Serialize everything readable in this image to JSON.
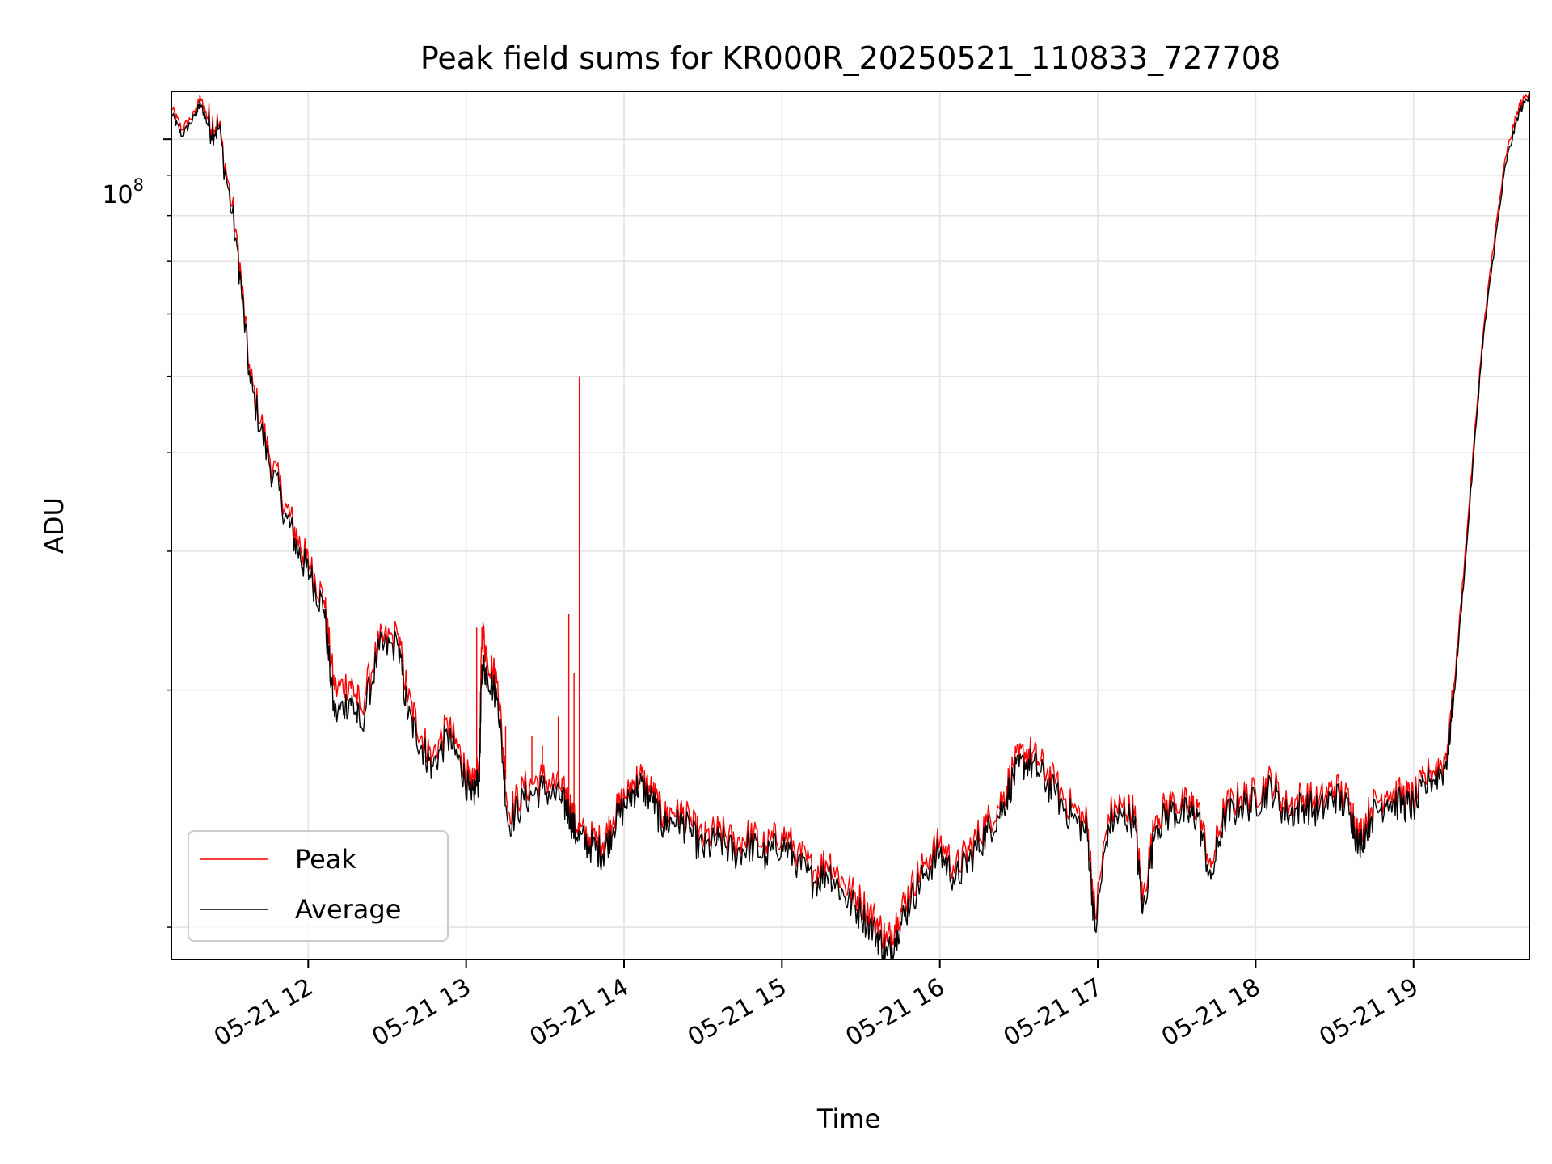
{
  "chart_data": {
    "type": "line",
    "title": "Peak field sums for KR000R_20250521_110833_727708",
    "xlabel": "Time",
    "ylabel": "ADU",
    "yscale": "log",
    "grid": true,
    "legend_position": "lower-left",
    "x_range": [
      "2025-05-21 11:08",
      "2025-05-21 19:44"
    ],
    "x_tick_labels": [
      "05-21 12",
      "05-21 13",
      "05-21 14",
      "05-21 15",
      "05-21 16",
      "05-21 17",
      "05-21 18",
      "05-21 19"
    ],
    "y_range": [
      9100000,
      115000000
    ],
    "y_major_tick_labels": [
      {
        "value": 100000000,
        "base": "10",
        "exponent": "8"
      }
    ],
    "series": [
      {
        "name": "Peak",
        "color": "#ff0000",
        "points": [
          [
            "2025-05-21 11:08",
            110000000
          ],
          [
            "2025-05-21 11:12",
            103000000
          ],
          [
            "2025-05-21 11:17",
            108000000
          ],
          [
            "2025-05-21 11:19",
            113000000
          ],
          [
            "2025-05-21 11:22",
            106000000
          ],
          [
            "2025-05-21 11:26",
            104000000
          ],
          [
            "2025-05-21 11:33",
            75000000
          ],
          [
            "2025-05-21 11:38",
            50000000
          ],
          [
            "2025-05-21 11:45",
            40000000
          ],
          [
            "2025-05-21 11:52",
            34000000
          ],
          [
            "2025-05-21 11:57",
            30500000
          ],
          [
            "2025-05-21 12:01",
            28500000
          ],
          [
            "2025-05-21 12:06",
            26000000
          ],
          [
            "2025-05-21 12:10",
            20000000
          ],
          [
            "2025-05-21 12:16",
            20500000
          ],
          [
            "2025-05-21 12:20",
            19000000
          ],
          [
            "2025-05-21 12:27",
            23000000
          ],
          [
            "2025-05-21 12:34",
            23500000
          ],
          [
            "2025-05-21 12:38",
            19500000
          ],
          [
            "2025-05-21 12:43",
            17500000
          ],
          [
            "2025-05-21 12:47",
            16500000
          ],
          [
            "2025-05-21 12:53",
            18000000
          ],
          [
            "2025-05-21 12:58",
            16500000
          ],
          [
            "2025-05-21 13:02",
            15000000
          ],
          [
            "2025-05-21 13:05",
            16000000
          ],
          [
            "2025-05-21 13:06",
            24000000
          ],
          [
            "2025-05-21 13:08",
            22000000
          ],
          [
            "2025-05-21 13:12",
            20500000
          ],
          [
            "2025-05-21 13:16",
            14000000
          ],
          [
            "2025-05-21 13:22",
            15000000
          ],
          [
            "2025-05-21 13:29",
            15500000
          ],
          [
            "2025-05-21 13:36",
            15000000
          ],
          [
            "2025-05-21 13:39",
            14500000
          ],
          [
            "2025-05-21 13:42",
            13300000
          ],
          [
            "2025-05-21 13:47",
            13000000
          ],
          [
            "2025-05-21 13:52",
            12800000
          ],
          [
            "2025-05-21 13:56",
            13800000
          ],
          [
            "2025-05-21 14:02",
            15000000
          ],
          [
            "2025-05-21 14:06",
            15600000
          ],
          [
            "2025-05-21 14:11",
            14800000
          ],
          [
            "2025-05-21 14:15",
            13800000
          ],
          [
            "2025-05-21 14:20",
            14200000
          ],
          [
            "2025-05-21 14:25",
            13600000
          ],
          [
            "2025-05-21 14:30",
            12900000
          ],
          [
            "2025-05-21 14:36",
            13300000
          ],
          [
            "2025-05-21 14:42",
            12800000
          ],
          [
            "2025-05-21 14:48",
            13100000
          ],
          [
            "2025-05-21 14:54",
            12700000
          ],
          [
            "2025-05-21 15:00",
            13200000
          ],
          [
            "2025-05-21 15:06",
            12500000
          ],
          [
            "2025-05-21 15:12",
            11800000
          ],
          [
            "2025-05-21 15:18",
            12200000
          ],
          [
            "2025-05-21 15:24",
            11300000
          ],
          [
            "2025-05-21 15:30",
            10800000
          ],
          [
            "2025-05-21 15:36",
            10200000
          ],
          [
            "2025-05-21 15:40",
            9600000
          ],
          [
            "2025-05-21 15:44",
            10300000
          ],
          [
            "2025-05-21 15:49",
            11200000
          ],
          [
            "2025-05-21 15:54",
            12100000
          ],
          [
            "2025-05-21 16:00",
            12800000
          ],
          [
            "2025-05-21 16:06",
            11900000
          ],
          [
            "2025-05-21 16:12",
            12700000
          ],
          [
            "2025-05-21 16:18",
            13600000
          ],
          [
            "2025-05-21 16:24",
            14600000
          ],
          [
            "2025-05-21 16:28",
            16000000
          ],
          [
            "2025-05-21 16:33",
            16800000
          ],
          [
            "2025-05-21 16:38",
            16200000
          ],
          [
            "2025-05-21 16:44",
            15200000
          ],
          [
            "2025-05-21 16:50",
            14200000
          ],
          [
            "2025-05-21 16:56",
            13600000
          ],
          [
            "2025-05-21 16:59",
            10300000
          ],
          [
            "2025-05-21 17:04",
            13900000
          ],
          [
            "2025-05-21 17:09",
            14300000
          ],
          [
            "2025-05-21 17:14",
            14000000
          ],
          [
            "2025-05-21 17:17",
            10800000
          ],
          [
            "2025-05-21 17:22",
            13800000
          ],
          [
            "2025-05-21 17:28",
            14400000
          ],
          [
            "2025-05-21 17:34",
            14300000
          ],
          [
            "2025-05-21 17:38",
            14200000
          ],
          [
            "2025-05-21 17:43",
            11900000
          ],
          [
            "2025-05-21 17:48",
            14200000
          ],
          [
            "2025-05-21 17:54",
            14600000
          ],
          [
            "2025-05-21 18:00",
            14800000
          ],
          [
            "2025-05-21 18:06",
            15400000
          ],
          [
            "2025-05-21 18:12",
            14200000
          ],
          [
            "2025-05-21 18:18",
            14700000
          ],
          [
            "2025-05-21 18:24",
            14400000
          ],
          [
            "2025-05-21 18:30",
            15100000
          ],
          [
            "2025-05-21 18:36",
            14400000
          ],
          [
            "2025-05-21 18:39",
            13100000
          ],
          [
            "2025-05-21 18:44",
            14200000
          ],
          [
            "2025-05-21 18:50",
            14900000
          ],
          [
            "2025-05-21 18:56",
            14700000
          ],
          [
            "2025-05-21 19:00",
            14600000
          ],
          [
            "2025-05-21 19:06",
            15700000
          ],
          [
            "2025-05-21 19:12",
            16300000
          ],
          [
            "2025-05-21 19:15",
            19500000
          ],
          [
            "2025-05-21 19:20",
            31000000
          ],
          [
            "2025-05-21 19:26",
            55000000
          ],
          [
            "2025-05-21 19:30",
            72000000
          ],
          [
            "2025-05-21 19:35",
            95000000
          ],
          [
            "2025-05-21 19:40",
            110000000
          ],
          [
            "2025-05-21 19:44",
            115000000
          ]
        ],
        "spikes": [
          [
            "2025-05-21 13:04",
            24000000
          ],
          [
            "2025-05-21 13:15",
            18000000
          ],
          [
            "2025-05-21 13:25",
            17500000
          ],
          [
            "2025-05-21 13:29",
            17000000
          ],
          [
            "2025-05-21 13:35",
            18500000
          ],
          [
            "2025-05-21 13:39",
            25000000
          ],
          [
            "2025-05-21 13:41",
            21000000
          ],
          [
            "2025-05-21 13:43",
            50000000
          ]
        ]
      },
      {
        "name": "Average",
        "color": "#000000",
        "points": [
          [
            "2025-05-21 11:08",
            108000000
          ],
          [
            "2025-05-21 11:12",
            101000000
          ],
          [
            "2025-05-21 11:17",
            107000000
          ],
          [
            "2025-05-21 11:19",
            111000000
          ],
          [
            "2025-05-21 11:22",
            104000000
          ],
          [
            "2025-05-21 11:26",
            103000000
          ],
          [
            "2025-05-21 11:33",
            73000000
          ],
          [
            "2025-05-21 11:38",
            49000000
          ],
          [
            "2025-05-21 11:45",
            39000000
          ],
          [
            "2025-05-21 11:52",
            33000000
          ],
          [
            "2025-05-21 11:57",
            29500000
          ],
          [
            "2025-05-21 12:01",
            27800000
          ],
          [
            "2025-05-21 12:06",
            25300000
          ],
          [
            "2025-05-21 12:10",
            18500000
          ],
          [
            "2025-05-21 12:16",
            19500000
          ],
          [
            "2025-05-21 12:20",
            18000000
          ],
          [
            "2025-05-21 12:27",
            22500000
          ],
          [
            "2025-05-21 12:34",
            22800000
          ],
          [
            "2025-05-21 12:38",
            18500000
          ],
          [
            "2025-05-21 12:43",
            17000000
          ],
          [
            "2025-05-21 12:47",
            16000000
          ],
          [
            "2025-05-21 12:53",
            17400000
          ],
          [
            "2025-05-21 12:58",
            16000000
          ],
          [
            "2025-05-21 13:02",
            14500000
          ],
          [
            "2025-05-21 13:05",
            15500000
          ],
          [
            "2025-05-21 13:06",
            21500000
          ],
          [
            "2025-05-21 13:08",
            21000000
          ],
          [
            "2025-05-21 13:12",
            19500000
          ],
          [
            "2025-05-21 13:16",
            13500000
          ],
          [
            "2025-05-21 13:22",
            14500000
          ],
          [
            "2025-05-21 13:29",
            15000000
          ],
          [
            "2025-05-21 13:36",
            14500000
          ],
          [
            "2025-05-21 13:39",
            14000000
          ],
          [
            "2025-05-21 13:42",
            13000000
          ],
          [
            "2025-05-21 13:47",
            12700000
          ],
          [
            "2025-05-21 13:52",
            12400000
          ],
          [
            "2025-05-21 13:56",
            13400000
          ],
          [
            "2025-05-21 14:02",
            14600000
          ],
          [
            "2025-05-21 14:06",
            15200000
          ],
          [
            "2025-05-21 14:11",
            14400000
          ],
          [
            "2025-05-21 14:15",
            13400000
          ],
          [
            "2025-05-21 14:20",
            13800000
          ],
          [
            "2025-05-21 14:25",
            13200000
          ],
          [
            "2025-05-21 14:30",
            12500000
          ],
          [
            "2025-05-21 14:36",
            12900000
          ],
          [
            "2025-05-21 14:42",
            12400000
          ],
          [
            "2025-05-21 14:48",
            12700000
          ],
          [
            "2025-05-21 14:54",
            12300000
          ],
          [
            "2025-05-21 15:00",
            12800000
          ],
          [
            "2025-05-21 15:06",
            12100000
          ],
          [
            "2025-05-21 15:12",
            11400000
          ],
          [
            "2025-05-21 15:18",
            11800000
          ],
          [
            "2025-05-21 15:24",
            10900000
          ],
          [
            "2025-05-21 15:30",
            10400000
          ],
          [
            "2025-05-21 15:36",
            9800000
          ],
          [
            "2025-05-21 15:40",
            9200000
          ],
          [
            "2025-05-21 15:44",
            9900000
          ],
          [
            "2025-05-21 15:49",
            10800000
          ],
          [
            "2025-05-21 15:54",
            11700000
          ],
          [
            "2025-05-21 16:00",
            12400000
          ],
          [
            "2025-05-21 16:06",
            11500000
          ],
          [
            "2025-05-21 16:12",
            12300000
          ],
          [
            "2025-05-21 16:18",
            13200000
          ],
          [
            "2025-05-21 16:24",
            14200000
          ],
          [
            "2025-05-21 16:28",
            15500000
          ],
          [
            "2025-05-21 16:33",
            16300000
          ],
          [
            "2025-05-21 16:38",
            15700000
          ],
          [
            "2025-05-21 16:44",
            14700000
          ],
          [
            "2025-05-21 16:50",
            13800000
          ],
          [
            "2025-05-21 16:56",
            13200000
          ],
          [
            "2025-05-21 16:59",
            9900000
          ],
          [
            "2025-05-21 17:04",
            13500000
          ],
          [
            "2025-05-21 17:09",
            13900000
          ],
          [
            "2025-05-21 17:14",
            13600000
          ],
          [
            "2025-05-21 17:17",
            10400000
          ],
          [
            "2025-05-21 17:22",
            13400000
          ],
          [
            "2025-05-21 17:28",
            14000000
          ],
          [
            "2025-05-21 17:34",
            13900000
          ],
          [
            "2025-05-21 17:38",
            13800000
          ],
          [
            "2025-05-21 17:43",
            11500000
          ],
          [
            "2025-05-21 17:48",
            13800000
          ],
          [
            "2025-05-21 17:54",
            14200000
          ],
          [
            "2025-05-21 18:00",
            14400000
          ],
          [
            "2025-05-21 18:06",
            15000000
          ],
          [
            "2025-05-21 18:12",
            13800000
          ],
          [
            "2025-05-21 18:18",
            14300000
          ],
          [
            "2025-05-21 18:24",
            14000000
          ],
          [
            "2025-05-21 18:30",
            14700000
          ],
          [
            "2025-05-21 18:36",
            14000000
          ],
          [
            "2025-05-21 18:39",
            12700000
          ],
          [
            "2025-05-21 18:44",
            13800000
          ],
          [
            "2025-05-21 18:50",
            14500000
          ],
          [
            "2025-05-21 18:56",
            14300000
          ],
          [
            "2025-05-21 19:00",
            14200000
          ],
          [
            "2025-05-21 19:06",
            15300000
          ],
          [
            "2025-05-21 19:12",
            15900000
          ],
          [
            "2025-05-21 19:15",
            19000000
          ],
          [
            "2025-05-21 19:20",
            30000000
          ],
          [
            "2025-05-21 19:26",
            54000000
          ],
          [
            "2025-05-21 19:30",
            70000000
          ],
          [
            "2025-05-21 19:35",
            93000000
          ],
          [
            "2025-05-21 19:40",
            108000000
          ],
          [
            "2025-05-21 19:44",
            114000000
          ]
        ]
      }
    ]
  }
}
